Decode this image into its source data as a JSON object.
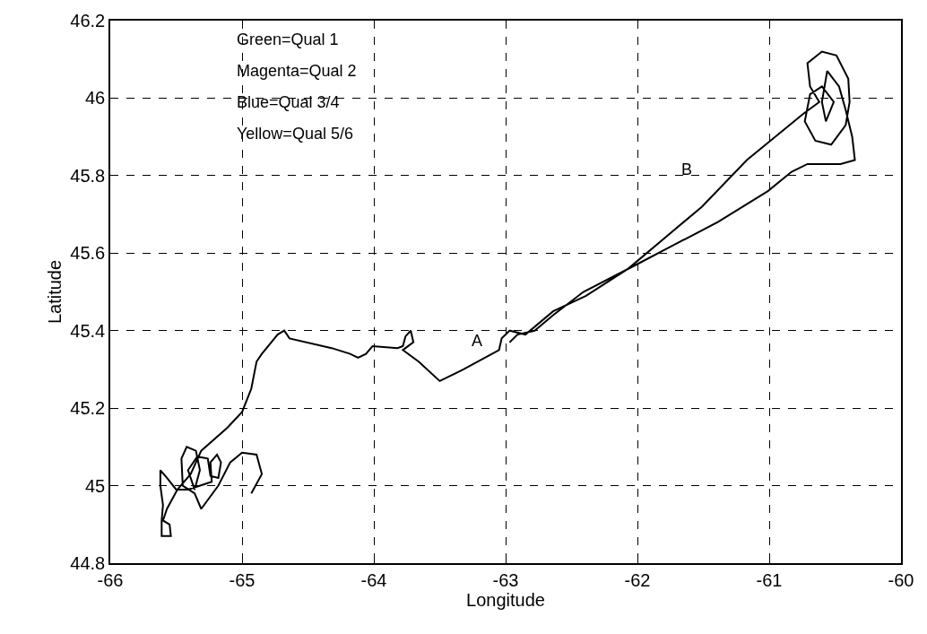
{
  "chart_data": {
    "type": "line",
    "xlabel": "Longitude",
    "ylabel": "Latitude",
    "annotations": [
      "Green=Qual 1",
      "Magenta=Qual 2",
      "Blue=Qual 3/4",
      "Yellow=Qual 5/6",
      "A",
      "B"
    ],
    "series": [
      {
        "color": "#000000",
        "x": [
          -64.93,
          -64.85,
          -64.89,
          -65.0,
          -65.09,
          -65.18,
          -65.31,
          -65.36,
          -65.45,
          -65.46,
          -65.42,
          -65.35,
          -65.32,
          -65.36,
          -65.41,
          -65.34,
          -65.26,
          -65.24,
          -65.18,
          -65.16,
          -65.19,
          -65.24,
          -65.23,
          -65.41,
          -65.5,
          -65.57,
          -65.62,
          -65.62,
          -65.6,
          -65.61,
          -65.61,
          -65.54,
          -65.55,
          -65.6,
          -65.57,
          -65.49,
          -65.39,
          -65.31,
          -65.11,
          -65.0,
          -64.93,
          -64.89,
          -64.85,
          -64.73,
          -64.68,
          -64.64,
          -64.32,
          -64.18,
          -64.12,
          -64.06,
          -64.01,
          -63.82,
          -63.78,
          -63.76,
          -63.72,
          -63.7,
          -63.78,
          -63.66,
          -63.5,
          -63.32,
          -63.05,
          -63.03,
          -62.97,
          -62.85,
          -62.64,
          -62.39,
          -62.07,
          -61.51,
          -61.17,
          -60.74,
          -60.62,
          -60.69,
          -60.71,
          -60.6,
          -60.49,
          -60.4,
          -60.39,
          -60.42,
          -60.53,
          -60.65,
          -60.73,
          -60.69,
          -60.6,
          -60.51,
          -60.57,
          -60.6,
          -60.56,
          -60.47,
          -60.42,
          -60.37,
          -60.35,
          -60.46,
          -60.71,
          -60.83,
          -61.01,
          -61.39,
          -61.73,
          -62.01,
          -62.41,
          -62.64,
          -62.78,
          -62.91,
          -62.97
        ],
        "values": [
          44.98,
          45.03,
          45.08,
          45.085,
          45.06,
          45.0,
          44.94,
          44.98,
          45.0,
          45.07,
          45.1,
          45.09,
          45.04,
          44.99,
          45.04,
          45.075,
          45.07,
          45.025,
          45.02,
          45.06,
          45.08,
          45.06,
          45.01,
          44.99,
          44.99,
          45.02,
          45.04,
          45.0,
          44.95,
          44.91,
          44.87,
          44.87,
          44.9,
          44.91,
          44.94,
          44.99,
          45.03,
          45.09,
          45.15,
          45.19,
          45.25,
          45.32,
          45.34,
          45.39,
          45.4,
          45.38,
          45.355,
          45.34,
          45.33,
          45.34,
          45.36,
          45.355,
          45.36,
          45.385,
          45.4,
          45.37,
          45.35,
          45.32,
          45.27,
          45.3,
          45.35,
          45.38,
          45.4,
          45.39,
          45.45,
          45.49,
          45.56,
          45.72,
          45.84,
          45.96,
          45.99,
          46.03,
          46.09,
          46.12,
          46.11,
          46.05,
          45.99,
          45.93,
          45.88,
          45.89,
          45.94,
          46.01,
          46.03,
          45.99,
          45.94,
          45.99,
          46.07,
          46.03,
          45.97,
          45.9,
          45.84,
          45.83,
          45.83,
          45.81,
          45.76,
          45.68,
          45.62,
          45.57,
          45.5,
          45.44,
          45.4,
          45.39,
          45.37
        ]
      }
    ],
    "xlim": [
      -66,
      -60
    ],
    "xticks": [
      -66,
      -65,
      -64,
      -63,
      -62,
      -61,
      -60
    ],
    "ylim": [
      44.8,
      46.2
    ],
    "yticks": [
      44.8,
      45,
      45.2,
      45.4,
      45.6,
      45.8,
      46,
      46.2
    ],
    "grid": true,
    "marker": "none",
    "line_style": "solid"
  }
}
